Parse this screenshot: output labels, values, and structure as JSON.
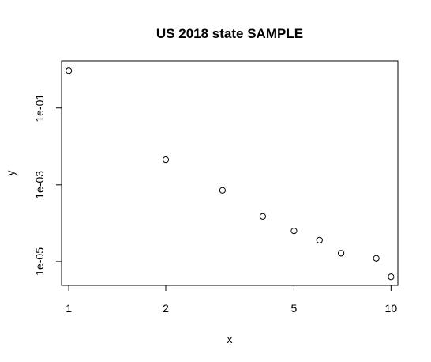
{
  "chart_data": {
    "type": "scatter",
    "title": "US 2018 state SAMPLE",
    "xlabel": "x",
    "ylabel": "y",
    "x_scale": "log",
    "y_scale": "log",
    "xlim": [
      0.95,
      10.5
    ],
    "ylim": [
      2.4e-06,
      1.7
    ],
    "x_ticks": [
      {
        "value": 1,
        "label": "1"
      },
      {
        "value": 2,
        "label": "2"
      },
      {
        "value": 5,
        "label": "5"
      },
      {
        "value": 10,
        "label": "10"
      }
    ],
    "y_ticks": [
      {
        "value": 1e-05,
        "label": "1e-05"
      },
      {
        "value": 0.001,
        "label": "1e-03"
      },
      {
        "value": 0.1,
        "label": "1e-01"
      }
    ],
    "grid": false,
    "legend": "none",
    "marker": "open-circle",
    "points": [
      {
        "x": 1,
        "y": 0.95
      },
      {
        "x": 2,
        "y": 0.0045
      },
      {
        "x": 3,
        "y": 0.00072
      },
      {
        "x": 4,
        "y": 0.00015
      },
      {
        "x": 5,
        "y": 6.3e-05
      },
      {
        "x": 6,
        "y": 3.6e-05
      },
      {
        "x": 7,
        "y": 1.65e-05
      },
      {
        "x": 9,
        "y": 1.22e-05
      },
      {
        "x": 10,
        "y": 4e-06
      }
    ]
  }
}
